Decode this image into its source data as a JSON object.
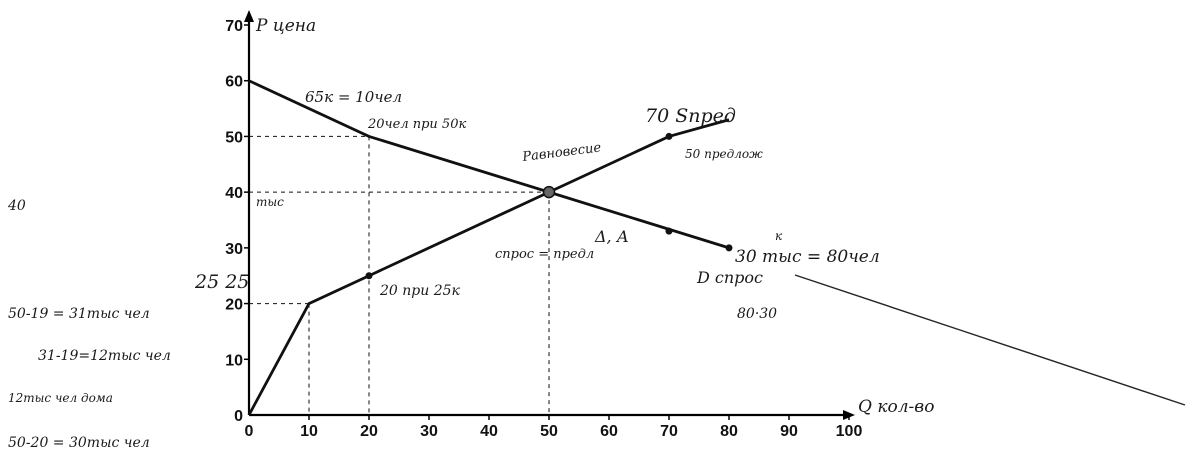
{
  "chart_data": {
    "type": "line",
    "xlim": [
      0,
      100
    ],
    "ylim": [
      0,
      70
    ],
    "x_ticks": [
      0,
      10,
      20,
      30,
      40,
      50,
      60,
      70,
      80,
      90,
      100
    ],
    "y_ticks": [
      0,
      10,
      20,
      30,
      40,
      50,
      60,
      70
    ],
    "x_axis_label": "Q кол-во",
    "y_axis_label": "P цена",
    "grid": false,
    "series": [
      {
        "name": "D",
        "points": [
          [
            0,
            60
          ],
          [
            20,
            50
          ],
          [
            50,
            40
          ],
          [
            80,
            30
          ]
        ]
      },
      {
        "name": "S",
        "points": [
          [
            0,
            0
          ],
          [
            10,
            20
          ],
          [
            20,
            25
          ],
          [
            50,
            40
          ],
          [
            70,
            50
          ],
          [
            80,
            53
          ]
        ]
      }
    ],
    "guide_lines": [
      {
        "x": 10,
        "y": 20
      },
      {
        "x": 20,
        "y": 50
      },
      {
        "x": 50,
        "y": 40
      }
    ],
    "marked_points": [
      [
        20,
        25
      ],
      [
        50,
        40
      ],
      [
        70,
        50
      ],
      [
        70,
        33
      ],
      [
        80,
        30
      ]
    ],
    "annotations": {
      "pt_60": "65к = 10чел",
      "pt_50": "20чел при 50к",
      "supply_top": "70 Sпред",
      "supply_50": "50 предлож",
      "equilibrium": "Равновесие",
      "supply_20": "20 при 25к",
      "left_25": "25 25",
      "y40_note": "тыс",
      "demand_eq": "спрос = предл",
      "delta": "Δ, А",
      "demand_30": "30 тыс = 80чел",
      "demand_30_k": "к",
      "demand_label": "D спрос",
      "demand_30_30": "80·30"
    },
    "side_notes": [
      "40",
      "50-19 = 31тыс чел",
      "31-19=12тыс чел",
      "12тыс чел дома",
      "50-20 = 30тыс чел"
    ]
  }
}
